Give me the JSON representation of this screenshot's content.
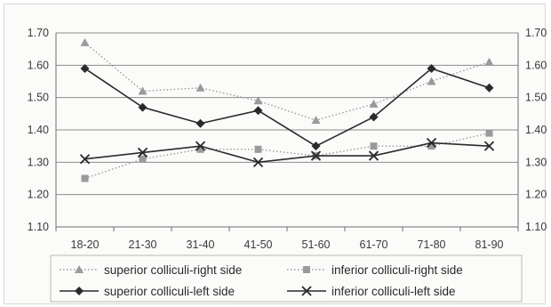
{
  "chart_data": {
    "type": "line",
    "title": "",
    "xlabel": "",
    "ylabel": "",
    "categories": [
      "18-20",
      "21-30",
      "31-40",
      "41-50",
      "51-60",
      "61-70",
      "71-80",
      "81-90"
    ],
    "ylim": [
      1.1,
      1.7
    ],
    "yticks": [
      "1.10",
      "1.20",
      "1.30",
      "1.40",
      "1.50",
      "1.60",
      "1.70"
    ],
    "secondary_yaxis": true,
    "grid": "horizontal",
    "legend_position": "bottom",
    "series": [
      {
        "name": "superior colliculi-right side",
        "values": [
          1.67,
          1.52,
          1.53,
          1.49,
          1.43,
          1.48,
          1.55,
          1.61
        ],
        "color": "#9a9a9a",
        "line_style": "dotted",
        "marker": "triangle"
      },
      {
        "name": "inferior colliculi-right side",
        "values": [
          1.25,
          1.31,
          1.34,
          1.34,
          1.32,
          1.35,
          1.35,
          1.39
        ],
        "color": "#9a9a9a",
        "line_style": "dotted",
        "marker": "square"
      },
      {
        "name": "superior colliculi-left side",
        "values": [
          1.59,
          1.47,
          1.42,
          1.46,
          1.35,
          1.44,
          1.59,
          1.53
        ],
        "color": "#2a2a2a",
        "line_style": "solid",
        "marker": "diamond"
      },
      {
        "name": "inferior colliculi-left side",
        "values": [
          1.31,
          1.33,
          1.35,
          1.3,
          1.32,
          1.32,
          1.36,
          1.35
        ],
        "color": "#2a2a2a",
        "line_style": "solid",
        "marker": "x"
      }
    ]
  }
}
